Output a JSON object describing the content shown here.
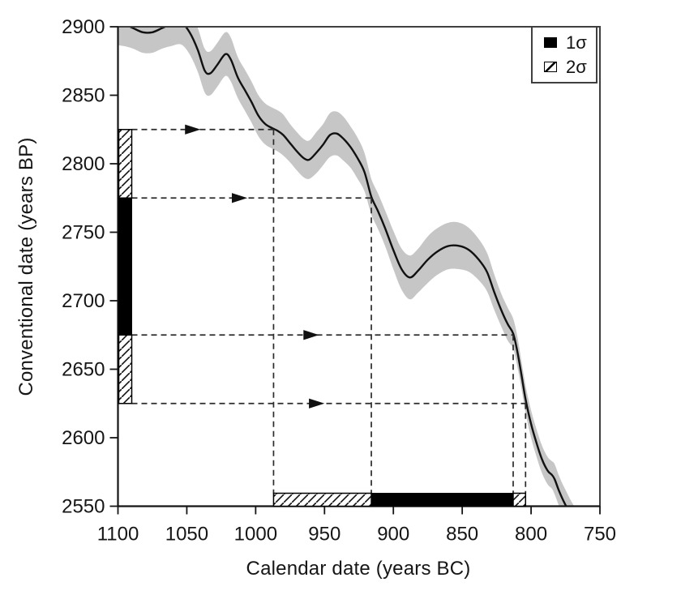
{
  "chart_data": {
    "type": "line",
    "xlabel": "Calendar date (years BC)",
    "ylabel": "Conventional date (years BP)",
    "x_axis": {
      "min": 1100,
      "max": 750,
      "reversed": true,
      "ticks": [
        1100,
        1050,
        1000,
        950,
        900,
        850,
        800,
        750
      ]
    },
    "y_axis": {
      "min": 2550,
      "max": 2900,
      "ticks": [
        2550,
        2600,
        2650,
        2700,
        2750,
        2800,
        2850,
        2900
      ]
    },
    "legend": {
      "position": "top-right",
      "items": [
        {
          "label": "1σ",
          "swatch": "solid-black"
        },
        {
          "label": "2σ",
          "swatch": "hatched"
        }
      ]
    },
    "curve": {
      "x_bc": [
        1104,
        1096,
        1089,
        1082,
        1075,
        1068,
        1061,
        1054,
        1048,
        1042,
        1037,
        1033,
        1028,
        1022,
        1018,
        1013,
        1008,
        1003,
        998,
        993,
        988,
        984,
        980,
        975,
        970,
        965,
        961,
        956,
        951,
        946,
        941,
        936,
        931,
        926,
        921,
        916,
        911,
        906,
        900,
        894,
        888,
        882,
        875,
        868,
        860,
        852,
        845,
        838,
        832,
        827,
        822,
        817,
        813,
        810,
        807,
        804,
        800,
        796,
        792,
        788,
        785,
        783,
        780,
        777,
        774,
        771,
        767
      ],
      "y_bp": [
        2903,
        2902,
        2899,
        2896,
        2896,
        2899,
        2902,
        2903,
        2896,
        2883,
        2868,
        2866,
        2872,
        2880,
        2876,
        2863,
        2854,
        2845,
        2835,
        2829,
        2826,
        2824,
        2821,
        2815,
        2809,
        2804,
        2803,
        2808,
        2814,
        2821,
        2822,
        2818,
        2812,
        2804,
        2794,
        2776,
        2765,
        2753,
        2737,
        2723,
        2717,
        2722,
        2730,
        2736,
        2740,
        2740,
        2737,
        2730,
        2721,
        2707,
        2694,
        2683,
        2676,
        2663,
        2646,
        2628,
        2610,
        2596,
        2584,
        2576,
        2573,
        2570,
        2562,
        2555,
        2549,
        2543,
        2536
      ],
      "band_halfwidth_bp": [
        16,
        16,
        15,
        15,
        15,
        15,
        16,
        16,
        16,
        16,
        16,
        16,
        16,
        16,
        16,
        15,
        15,
        15,
        15,
        15,
        15,
        15,
        15,
        14,
        14,
        14,
        14,
        15,
        15,
        16,
        16,
        16,
        15,
        15,
        14,
        13,
        13,
        13,
        14,
        15,
        16,
        16,
        17,
        17,
        17,
        17,
        16,
        15,
        14,
        13,
        12,
        12,
        11,
        11,
        10,
        10,
        10,
        10,
        10,
        10,
        10,
        11,
        11,
        11,
        11,
        11,
        11
      ]
    },
    "hpd_ranges": {
      "y_axis_bp": {
        "one_sigma": [
          [
            2675,
            2775
          ]
        ],
        "two_sigma": [
          [
            2775,
            2825
          ],
          [
            2625,
            2675
          ]
        ]
      },
      "x_axis_bc": {
        "one_sigma": [
          [
            916,
            813
          ]
        ],
        "two_sigma": [
          [
            987,
            916
          ],
          [
            813,
            804
          ]
        ]
      }
    },
    "connectors": [
      {
        "bp": 2825,
        "bc": 987,
        "arrow_bc": 1041
      },
      {
        "bp": 2775,
        "bc": 916,
        "arrow_bc": 1007
      },
      {
        "bp": 2675,
        "bc": 813,
        "arrow_bc": 955
      },
      {
        "bp": 2625,
        "bc": 804,
        "arrow_bc": 951
      }
    ],
    "colors": {
      "band": "#c6c6c6",
      "curve": "#111111",
      "frame": "#3f3f3f",
      "axis": "#141414",
      "dashed": "#2b2b2b",
      "bar_fill": "#000000",
      "hatch_line": "#111111",
      "tick_text": "#161616"
    }
  }
}
